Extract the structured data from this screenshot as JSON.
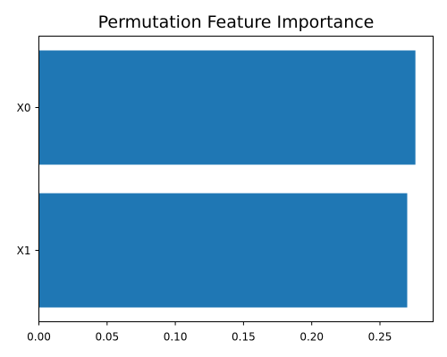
{
  "chart_data": {
    "type": "bar",
    "orientation": "horizontal",
    "title": "Permutation Feature Importance",
    "xlabel": "",
    "ylabel": "",
    "categories": [
      "X0",
      "X1"
    ],
    "values": [
      0.276,
      0.27
    ],
    "xlim": [
      0,
      0.289
    ],
    "xticks": [
      0.0,
      0.05,
      0.1,
      0.15,
      0.2,
      0.25
    ],
    "xtick_labels": [
      "0.00",
      "0.05",
      "0.10",
      "0.15",
      "0.20",
      "0.25"
    ],
    "bar_color": "#1f77b4",
    "grid": false,
    "legend": false
  }
}
